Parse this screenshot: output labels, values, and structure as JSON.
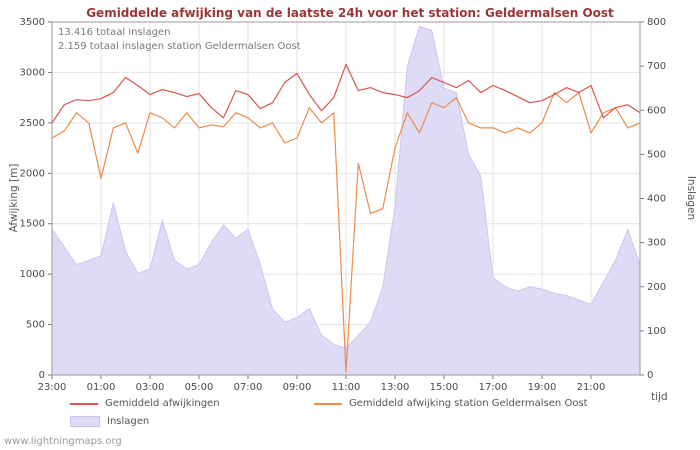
{
  "watermark": "www.lightningmaps.org",
  "chart_data": {
    "type": "line",
    "title": "Gemiddelde afwijking van de laatste 24h voor het station: Geldermalsen Oost",
    "annotations": [
      "13.416 totaal inslagen",
      "2.159 totaal inslagen station Geldermalsen Oost"
    ],
    "x_label": "tijd",
    "x_span_hours": 24,
    "x_step_hours": 0.5,
    "x_ticks": {
      "hours": [
        0,
        2,
        4,
        6,
        8,
        10,
        12,
        14,
        16,
        18,
        20,
        22
      ],
      "labels": [
        "23:00",
        "01:00",
        "03:00",
        "05:00",
        "07:00",
        "09:00",
        "11:00",
        "13:00",
        "15:00",
        "17:00",
        "19:00",
        "21:00"
      ]
    },
    "y_left": {
      "label": "Afwijking [m]",
      "lim": [
        0,
        3500
      ],
      "ticks": [
        0,
        500,
        1000,
        1500,
        2000,
        2500,
        3000,
        3500
      ]
    },
    "y_right": {
      "label": "Inslagen",
      "lim": [
        0,
        800
      ],
      "ticks": [
        0,
        100,
        200,
        300,
        400,
        500,
        600,
        700,
        800
      ]
    },
    "grid": true,
    "legend_position": "bottom",
    "series": [
      {
        "name": "Gemiddeld afwijkingen",
        "color": "#d9544d",
        "axis": "left",
        "values": [
          2500,
          2680,
          2730,
          2720,
          2740,
          2800,
          2950,
          2870,
          2780,
          2830,
          2800,
          2760,
          2790,
          2650,
          2550,
          2820,
          2780,
          2640,
          2700,
          2900,
          2990,
          2780,
          2620,
          2750,
          3080,
          2820,
          2850,
          2800,
          2780,
          2750,
          2820,
          2950,
          2900,
          2850,
          2920,
          2800,
          2870,
          2820,
          2760,
          2700,
          2720,
          2780,
          2850,
          2800,
          2870,
          2550,
          2650,
          2680,
          2600
        ]
      },
      {
        "name": "Gemiddeld afwijking station Geldermalsen Oost",
        "color": "#ed8b4c",
        "axis": "left",
        "values": [
          2350,
          2420,
          2600,
          2500,
          1950,
          2450,
          2500,
          2200,
          2600,
          2550,
          2450,
          2600,
          2450,
          2480,
          2460,
          2600,
          2550,
          2450,
          2500,
          2300,
          2350,
          2650,
          2500,
          2600,
          30,
          2100,
          1600,
          1650,
          2250,
          2600,
          2400,
          2700,
          2650,
          2750,
          2500,
          2450,
          2450,
          2400,
          2450,
          2400,
          2500,
          2800,
          2700,
          2800,
          2400,
          2600,
          2650,
          2450,
          2500
        ]
      }
    ],
    "area_series": {
      "name": "Inslagen",
      "color": "#dedbf6",
      "edge_color": "#cbc5ee",
      "axis": "right",
      "values": [
        330,
        290,
        250,
        260,
        270,
        390,
        280,
        230,
        240,
        350,
        260,
        240,
        250,
        300,
        340,
        310,
        330,
        250,
        150,
        120,
        130,
        150,
        90,
        70,
        60,
        90,
        120,
        200,
        380,
        700,
        790,
        780,
        650,
        640,
        500,
        450,
        220,
        200,
        190,
        200,
        195,
        185,
        180,
        170,
        160,
        210,
        260,
        330,
        250
      ]
    }
  }
}
